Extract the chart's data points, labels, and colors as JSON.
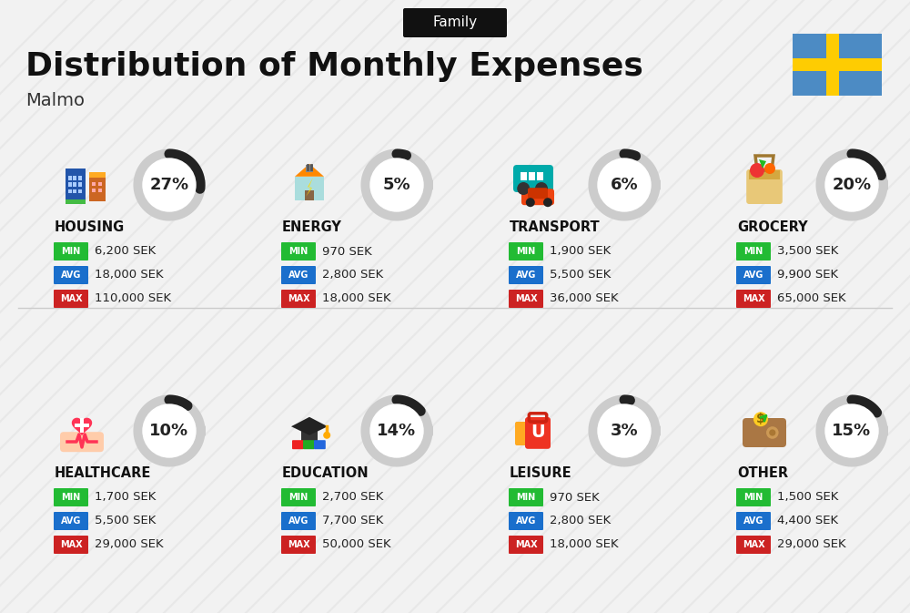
{
  "title": "Distribution of Monthly Expenses",
  "subtitle": "Malmo",
  "family_label": "Family",
  "background_color": "#f2f2f2",
  "categories": [
    {
      "name": "HOUSING",
      "percent": 27,
      "min": "6,200 SEK",
      "avg": "18,000 SEK",
      "max": "110,000 SEK",
      "row": 0,
      "col": 0
    },
    {
      "name": "ENERGY",
      "percent": 5,
      "min": "970 SEK",
      "avg": "2,800 SEK",
      "max": "18,000 SEK",
      "row": 0,
      "col": 1
    },
    {
      "name": "TRANSPORT",
      "percent": 6,
      "min": "1,900 SEK",
      "avg": "5,500 SEK",
      "max": "36,000 SEK",
      "row": 0,
      "col": 2
    },
    {
      "name": "GROCERY",
      "percent": 20,
      "min": "3,500 SEK",
      "avg": "9,900 SEK",
      "max": "65,000 SEK",
      "row": 0,
      "col": 3
    },
    {
      "name": "HEALTHCARE",
      "percent": 10,
      "min": "1,700 SEK",
      "avg": "5,500 SEK",
      "max": "29,000 SEK",
      "row": 1,
      "col": 0
    },
    {
      "name": "EDUCATION",
      "percent": 14,
      "min": "2,700 SEK",
      "avg": "7,700 SEK",
      "max": "50,000 SEK",
      "row": 1,
      "col": 1
    },
    {
      "name": "LEISURE",
      "percent": 3,
      "min": "970 SEK",
      "avg": "2,800 SEK",
      "max": "18,000 SEK",
      "row": 1,
      "col": 2
    },
    {
      "name": "OTHER",
      "percent": 15,
      "min": "1,500 SEK",
      "avg": "4,400 SEK",
      "max": "29,000 SEK",
      "row": 1,
      "col": 3
    }
  ],
  "min_color": "#22bb33",
  "avg_color": "#1a6fcc",
  "max_color": "#cc2222",
  "arc_color_filled": "#222222",
  "arc_color_bg": "#cccccc",
  "title_color": "#111111",
  "subtitle_color": "#333333",
  "family_bg": "#111111",
  "family_text": "#ffffff",
  "sweden_blue": "#4C8BC4",
  "sweden_yellow": "#FECC02"
}
